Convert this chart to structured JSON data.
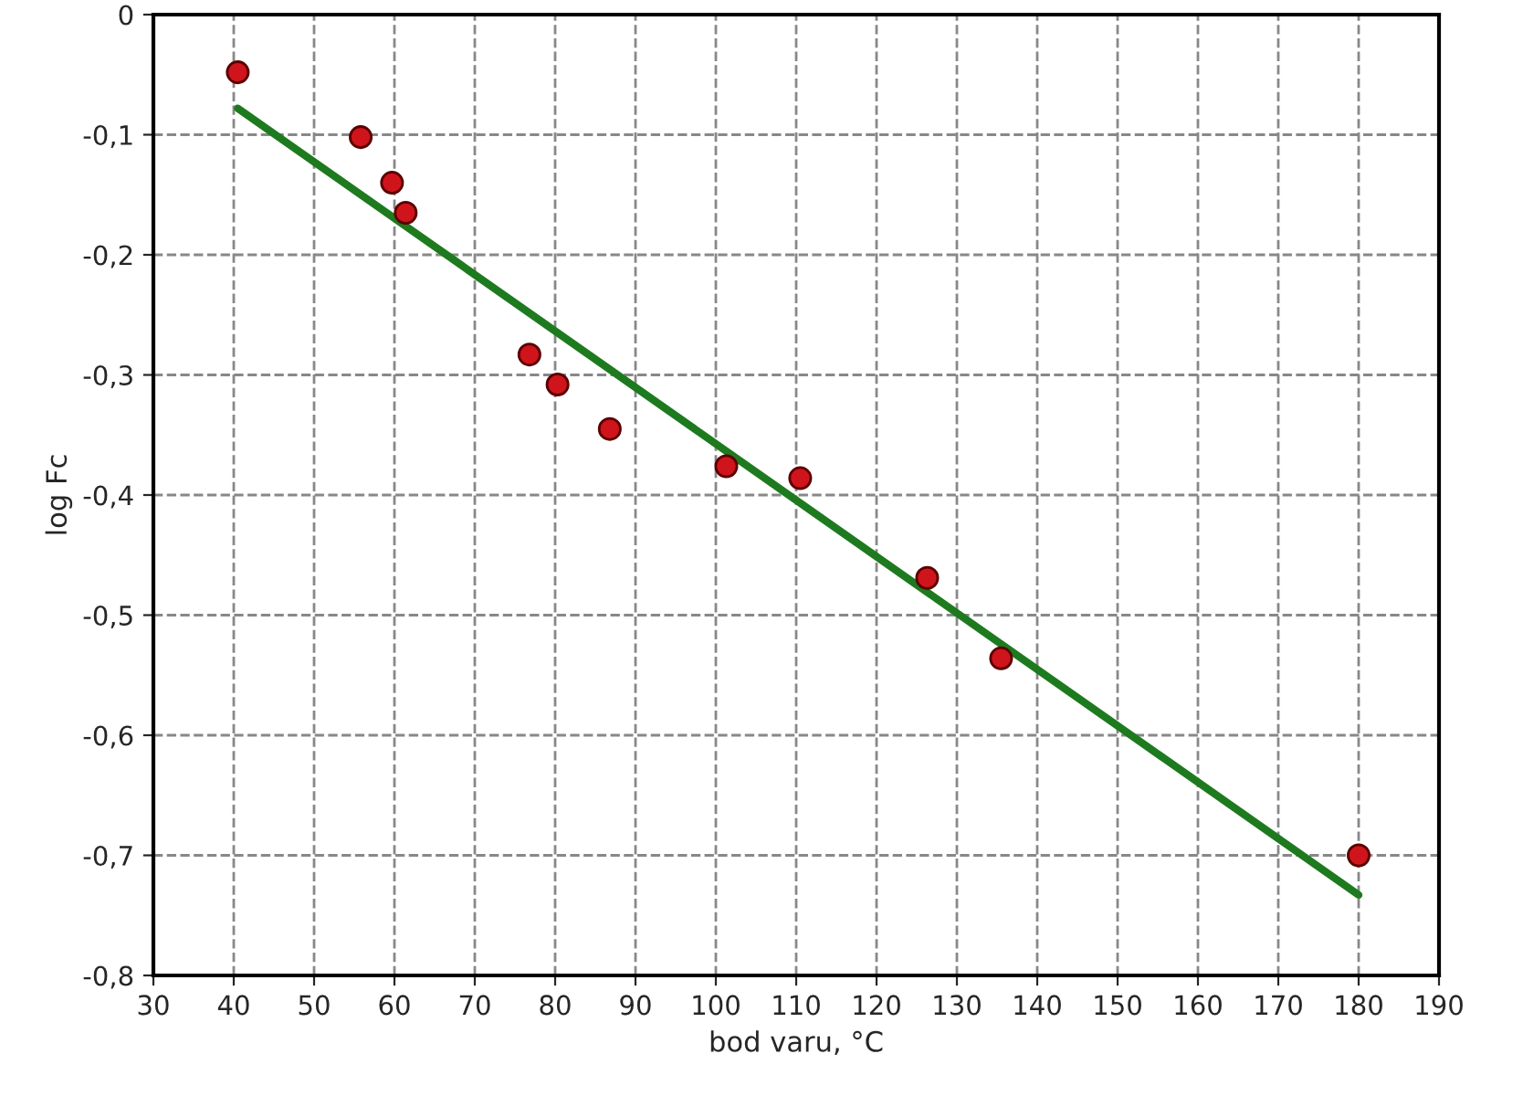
{
  "chart_data": {
    "type": "scatter",
    "xlabel": "bod varu, °C",
    "ylabel": "log Fc",
    "series": [
      {
        "color": "#d0141c",
        "marker": "circle",
        "x": [
          40.5,
          55.8,
          59.7,
          61.4,
          76.8,
          80.3,
          86.8,
          101.3,
          110.5,
          126.3,
          135.5,
          180
        ],
        "values": [
          -0.048,
          -0.102,
          -0.14,
          -0.165,
          -0.283,
          -0.308,
          -0.345,
          -0.376,
          -0.386,
          -0.469,
          -0.536,
          -0.7
        ]
      },
      {
        "type": "line",
        "color": "#1e7a1e",
        "marker": "none",
        "line_style": "solid",
        "x": [
          40.5,
          180
        ],
        "values": [
          -0.078,
          -0.733
        ]
      }
    ],
    "xlim": [
      30,
      190
    ],
    "xticks": [
      30,
      40,
      50,
      60,
      70,
      80,
      90,
      100,
      110,
      120,
      130,
      140,
      150,
      160,
      170,
      180,
      190
    ],
    "ylim": [
      -0.8,
      0
    ],
    "yticks": [
      {
        "value": -0.8,
        "label": "-0,8"
      },
      {
        "value": -0.7,
        "label": "-0,7"
      },
      {
        "value": -0.6,
        "label": "-0,6"
      },
      {
        "value": -0.5,
        "label": "-0,5"
      },
      {
        "value": -0.4,
        "label": "-0,4"
      },
      {
        "value": -0.3,
        "label": "-0,3"
      },
      {
        "value": -0.2,
        "label": "-0,2"
      },
      {
        "value": -0.1,
        "label": "-0,1"
      },
      0
    ],
    "grid": true
  }
}
